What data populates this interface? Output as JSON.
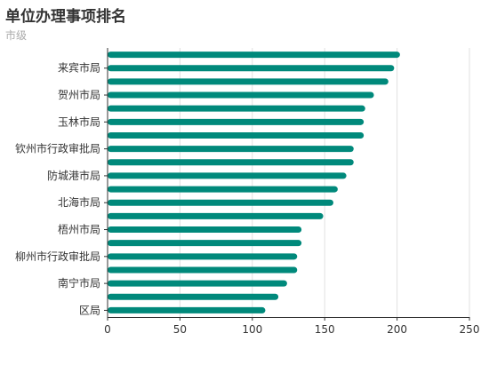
{
  "chart_data": {
    "type": "bar",
    "orientation": "horizontal",
    "title": "单位办理事项排名",
    "subtitle": "市级",
    "categories": [
      "",
      "来宾市局",
      "",
      "贺州市局",
      "",
      "玉林市局",
      "",
      "钦州市行政审批局",
      "",
      "防城港市局",
      "",
      "北海市局",
      "",
      "梧州市局",
      "",
      "柳州市行政审批局",
      "",
      "南宁市局",
      "",
      "区局"
    ],
    "values": [
      202,
      198,
      194,
      184,
      178,
      177,
      177,
      170,
      170,
      165,
      159,
      156,
      149,
      134,
      134,
      131,
      131,
      124,
      118,
      109
    ],
    "xlim": [
      0,
      250
    ],
    "xticks": [
      0,
      50,
      100,
      150,
      200,
      250
    ],
    "grid": true,
    "bar_color": "#00897b"
  }
}
